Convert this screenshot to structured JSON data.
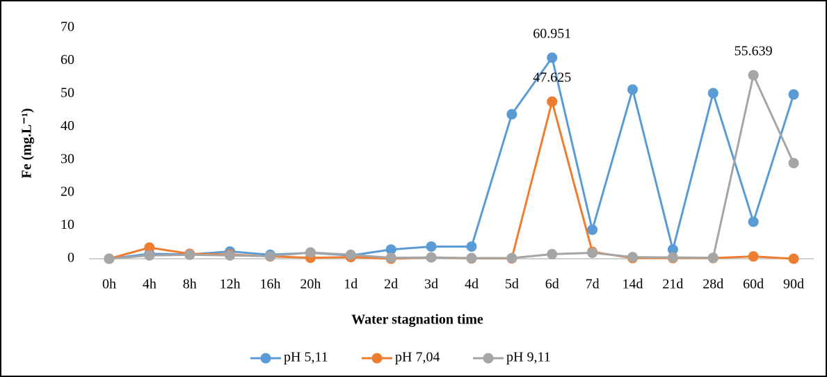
{
  "chart_data": {
    "type": "line",
    "y_label": "Fe (mg.L⁻¹)",
    "x_label": "Water stagnation time",
    "categories": [
      "0h",
      "4h",
      "8h",
      "12h",
      "16h",
      "20h",
      "1d",
      "2d",
      "3d",
      "4d",
      "5d",
      "6d",
      "7d",
      "14d",
      "21d",
      "28d",
      "60d",
      "90d"
    ],
    "ylim": [
      0,
      70
    ],
    "yticks": [
      0,
      10,
      20,
      30,
      40,
      50,
      60,
      70
    ],
    "grid": false,
    "legend": "bottom",
    "series": [
      {
        "name": "pH 5,11",
        "color": "#5b9bd5",
        "data_labels": [
          11
        ],
        "values": [
          0,
          1.5,
          1.3,
          2.2,
          1.2,
          1.8,
          1.0,
          2.8,
          3.7,
          3.7,
          43.8,
          60.951,
          8.8,
          51.3,
          2.8,
          50.2,
          11.2,
          49.8
        ]
      },
      {
        "name": "pH 7,04",
        "color": "#ed7d31",
        "data_labels": [
          11
        ],
        "values": [
          0,
          3.4,
          1.5,
          1.3,
          0.7,
          0.3,
          0.5,
          0.0,
          0.4,
          0.1,
          0.1,
          47.625,
          2.1,
          0.2,
          0.2,
          0.2,
          0.7,
          0.0
        ]
      },
      {
        "name": "pH 9,11",
        "color": "#a5a5a5",
        "data_labels": [
          16
        ],
        "values": [
          0,
          1.0,
          1.2,
          1.0,
          0.8,
          1.9,
          1.2,
          0.3,
          0.4,
          0.2,
          0.2,
          1.4,
          1.8,
          0.5,
          0.4,
          0.3,
          55.639,
          29.0
        ]
      }
    ]
  }
}
